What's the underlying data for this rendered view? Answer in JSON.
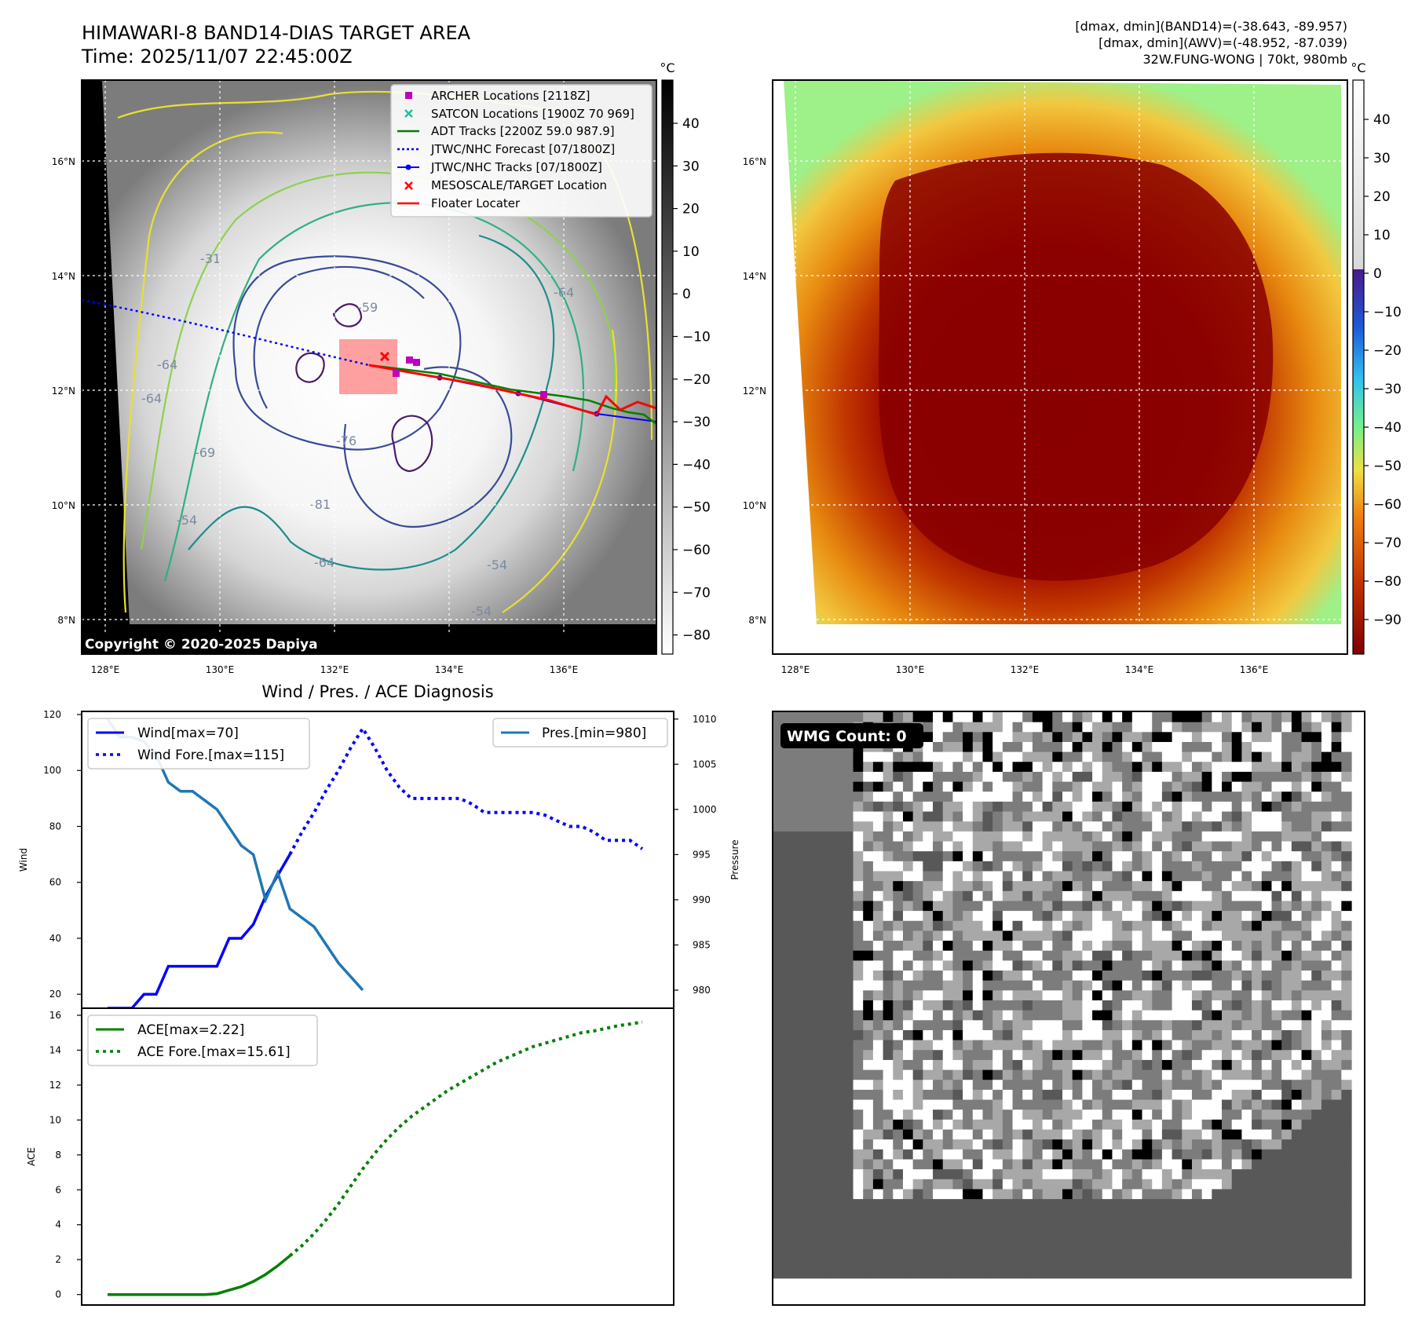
{
  "header": {
    "title_line1": "HIMAWARI-8 BAND14-DIAS TARGET AREA",
    "title_line2": "Time: 2025/11/07 22:45:00Z",
    "stats_line1": "[dmax, dmin](BAND14)=(-38.643, -89.957)",
    "stats_line2": "[dmax, dmin](AWV)=(-48.952, -87.039)",
    "stats_line3": "32W.FUNG-WONG | 70kt, 980mb"
  },
  "map_axes": {
    "lon_ticks": [
      "128°E",
      "130°E",
      "132°E",
      "134°E",
      "136°E"
    ],
    "lat_ticks": [
      "16°N",
      "14°N",
      "12°N",
      "10°N",
      "8°N"
    ],
    "unit": "°C",
    "copyright": "Copyright © 2020-2025 Dapiya"
  },
  "ir_colorbar": {
    "ticks": [
      "40",
      "30",
      "20",
      "10",
      "0",
      "−10",
      "−20",
      "−30",
      "−40",
      "−50",
      "−60",
      "−70",
      "−80"
    ]
  },
  "awv_colorbar": {
    "ticks": [
      "40",
      "30",
      "20",
      "10",
      "0",
      "−10",
      "−20",
      "−30",
      "−40",
      "−50",
      "−60",
      "−70",
      "−80",
      "−90"
    ]
  },
  "contour_labels": [
    "-31",
    "-64",
    "-64",
    "-64",
    "-54",
    "-76",
    "-81",
    "-64",
    "-54",
    "-59",
    "-54",
    "-69"
  ],
  "legend": {
    "items": [
      {
        "label": "ARCHER Locations [2118Z]",
        "color": "#c000c0",
        "marker": "square"
      },
      {
        "label": "SATCON Locations [1900Z 70 969]",
        "color": "#20c0a0",
        "marker": "x"
      },
      {
        "label": "ADT Tracks [2200Z 59.0 987.9]",
        "color": "#008000",
        "marker": "line"
      },
      {
        "label": "JTWC/NHC Forecast [07/1800Z]",
        "color": "#0000ff",
        "marker": "dotted"
      },
      {
        "label": "JTWC/NHC Tracks [07/1800Z]",
        "color": "#0000ff",
        "marker": "line-dot"
      },
      {
        "label": "MESOSCALE/TARGET Location",
        "color": "#ff0000",
        "marker": "x"
      },
      {
        "label": "Floater Locater",
        "color": "#ff0000",
        "marker": "line"
      }
    ]
  },
  "wmg": {
    "label": "WMG Count: 0"
  },
  "chart_data": [
    {
      "type": "line",
      "title": "Wind / Pres. / ACE Diagnosis",
      "ylabel": "Wind",
      "ylabel_right": "Pressure",
      "ylim": [
        15,
        120
      ],
      "ylim_right": [
        978,
        1010.5
      ],
      "yticks": [
        20,
        40,
        60,
        80,
        100,
        120
      ],
      "yticks_right": [
        980,
        985,
        990,
        995,
        1000,
        1005,
        1010
      ],
      "legend_left": [
        "Wind[max=70]",
        "Wind Fore.[max=115]"
      ],
      "legend_right": [
        "Pres.[min=980]"
      ],
      "series": [
        {
          "name": "Wind",
          "axis": "left",
          "color": "#0000ff",
          "style": "solid",
          "x": [
            0,
            1,
            2,
            3,
            4,
            5,
            6,
            7,
            8,
            9,
            10,
            11,
            12,
            13,
            14,
            15
          ],
          "values": [
            15,
            15,
            15,
            20,
            20,
            30,
            30,
            30,
            30,
            30,
            40,
            40,
            45,
            55,
            62.5,
            70
          ]
        },
        {
          "name": "Wind Fore.",
          "axis": "left",
          "color": "#0000ff",
          "style": "dotted",
          "x": [
            15,
            16,
            17,
            18,
            19,
            20,
            21,
            22,
            23,
            24,
            25,
            26,
            27,
            28,
            29,
            30,
            31,
            32,
            33,
            34,
            35,
            36,
            37,
            38,
            39,
            40,
            41,
            42,
            43,
            44
          ],
          "values": [
            70,
            78,
            85,
            93,
            100,
            108,
            115,
            108,
            100,
            94,
            90,
            90,
            90,
            90,
            90,
            88,
            85,
            85,
            85,
            85,
            85,
            84,
            82,
            80,
            80,
            78,
            75,
            75,
            75,
            72
          ]
        },
        {
          "name": "Pres.",
          "axis": "right",
          "color": "#1f77b4",
          "style": "solid",
          "x": [
            0,
            1,
            2,
            3,
            4,
            5,
            6,
            7,
            8,
            9,
            10,
            11,
            12,
            13,
            14,
            15,
            16,
            17,
            18,
            19,
            20,
            21
          ],
          "values": [
            1010,
            1008,
            1008,
            1007.5,
            1006,
            1003,
            1002,
            1002,
            1001,
            1000,
            998,
            996,
            995,
            990,
            993,
            989,
            988,
            987,
            985,
            983,
            981.5,
            980
          ]
        }
      ]
    },
    {
      "type": "line",
      "ylabel": "ACE",
      "ylim": [
        -0.6,
        16
      ],
      "yticks": [
        0,
        2,
        4,
        6,
        8,
        10,
        12,
        14,
        16
      ],
      "legend": [
        "ACE[max=2.22]",
        "ACE Fore.[max=15.61]"
      ],
      "series": [
        {
          "name": "ACE",
          "color": "#008000",
          "style": "solid",
          "x": [
            0,
            1,
            2,
            3,
            4,
            5,
            6,
            7,
            8,
            9,
            10,
            11,
            12,
            13,
            14,
            15
          ],
          "values": [
            0,
            0,
            0,
            0,
            0,
            0,
            0,
            0,
            0,
            0.05,
            0.25,
            0.45,
            0.75,
            1.15,
            1.65,
            2.22
          ]
        },
        {
          "name": "ACE Fore.",
          "color": "#008000",
          "style": "dotted",
          "x": [
            15,
            16,
            17,
            18,
            19,
            20,
            21,
            22,
            23,
            24,
            25,
            26,
            27,
            28,
            29,
            30,
            31,
            32,
            33,
            34,
            35,
            36,
            37,
            38,
            39,
            40,
            41,
            42,
            43,
            44
          ],
          "values": [
            2.22,
            2.8,
            3.5,
            4.3,
            5.2,
            6.2,
            7.2,
            8.1,
            8.9,
            9.6,
            10.2,
            10.7,
            11.2,
            11.7,
            12.1,
            12.5,
            12.9,
            13.3,
            13.6,
            13.9,
            14.2,
            14.4,
            14.6,
            14.8,
            15.0,
            15.1,
            15.25,
            15.4,
            15.5,
            15.61
          ]
        }
      ]
    }
  ]
}
